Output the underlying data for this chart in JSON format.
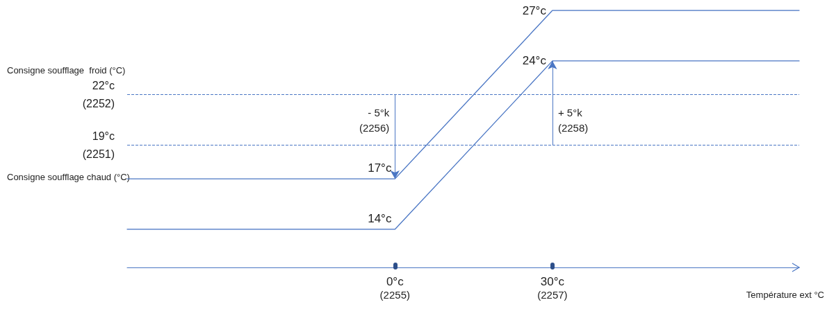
{
  "chart_data": {
    "type": "line",
    "xlabel": "Température ext °C",
    "xlim": [
      -51,
      77
    ],
    "tick_labels": "x",
    "xticks": [
      {
        "value": 0,
        "label": "0°c"
      },
      {
        "value": 30,
        "label": "30°c"
      }
    ],
    "series": [
      {
        "color": "#4a76c4",
        "x": [
          -51,
          0,
          30,
          77
        ],
        "values": [
          17,
          17,
          27,
          27
        ],
        "value_labels": [
          null,
          "17°c",
          "27°c",
          null
        ]
      },
      {
        "color": "#4a76c4",
        "x": [
          -51,
          0,
          30,
          77
        ],
        "values": [
          14,
          14,
          24,
          24
        ],
        "value_labels": [
          null,
          "14°c",
          "24°c",
          null
        ]
      }
    ],
    "ref_lines": [
      {
        "axis": "y",
        "value": 19,
        "label": "19°c\n(2251)",
        "color": "#4a76c4",
        "line_style": "dashed"
      },
      {
        "axis": "y",
        "value": 22,
        "label": "22°c\n(2252)",
        "color": "#4a76c4",
        "line_style": "dashed"
      }
    ],
    "annotations": [
      "Consigne soufflage  froid (°C)",
      "Consigne soufflage chaud (°C)",
      {
        "text": "- 5°k\n(2256)",
        "x": 0,
        "y": 17
      },
      {
        "text": "+ 5°k\n(2258)",
        "x": 30,
        "y": 24
      },
      "(2255)",
      "(2257)"
    ],
    "grid": false,
    "marker": "none",
    "line_style": "solid"
  }
}
